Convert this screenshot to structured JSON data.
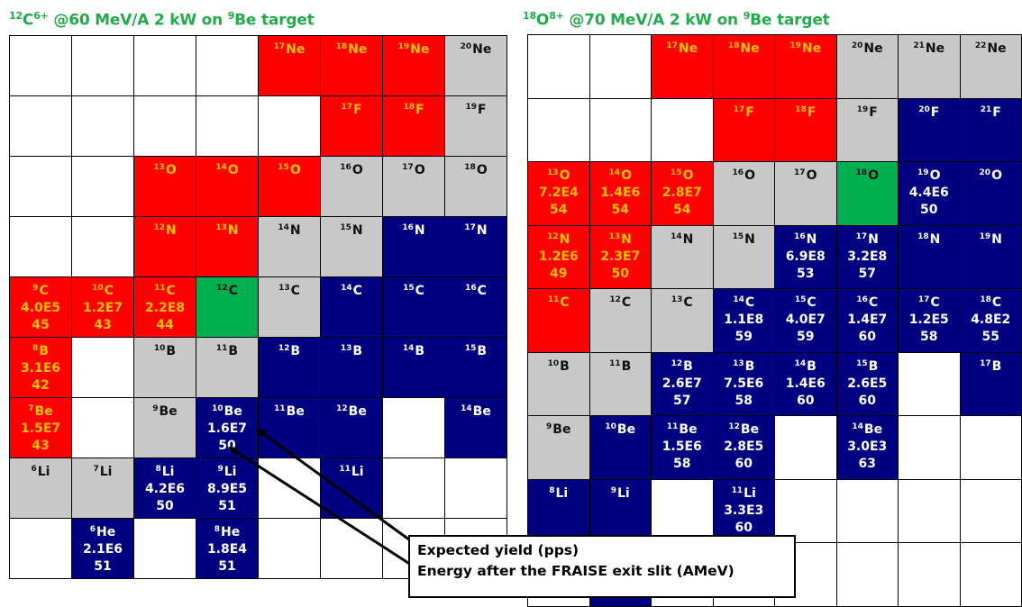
{
  "left": {
    "title": {
      "pre": "12",
      "ion": "C",
      "charge": "6+",
      "mid": " @60 MeV/A 2 kW on ",
      "tpre": "9",
      "target": "Be",
      "post": " target"
    },
    "rows": [
      [
        {
          "c": "w"
        },
        {
          "c": "w"
        },
        {
          "c": "w"
        },
        {
          "c": "w"
        },
        {
          "c": "r",
          "a": "17",
          "e": "Ne"
        },
        {
          "c": "r",
          "a": "18",
          "e": "Ne"
        },
        {
          "c": "r",
          "a": "19",
          "e": "Ne"
        },
        {
          "c": "g",
          "a": "20",
          "e": "Ne"
        }
      ],
      [
        {
          "c": "w"
        },
        {
          "c": "w"
        },
        {
          "c": "w"
        },
        {
          "c": "w"
        },
        {
          "c": "w"
        },
        {
          "c": "r",
          "a": "17",
          "e": "F"
        },
        {
          "c": "r",
          "a": "18",
          "e": "F"
        },
        {
          "c": "g",
          "a": "19",
          "e": "F"
        }
      ],
      [
        {
          "c": "w"
        },
        {
          "c": "w"
        },
        {
          "c": "r",
          "a": "13",
          "e": "O"
        },
        {
          "c": "r",
          "a": "14",
          "e": "O"
        },
        {
          "c": "r",
          "a": "15",
          "e": "O"
        },
        {
          "c": "g",
          "a": "16",
          "e": "O"
        },
        {
          "c": "g",
          "a": "17",
          "e": "O"
        },
        {
          "c": "g",
          "a": "18",
          "e": "O"
        }
      ],
      [
        {
          "c": "w"
        },
        {
          "c": "w"
        },
        {
          "c": "r",
          "a": "12",
          "e": "N"
        },
        {
          "c": "r",
          "a": "13",
          "e": "N"
        },
        {
          "c": "g",
          "a": "14",
          "e": "N"
        },
        {
          "c": "g",
          "a": "15",
          "e": "N"
        },
        {
          "c": "b",
          "a": "16",
          "e": "N"
        },
        {
          "c": "b",
          "a": "17",
          "e": "N"
        }
      ],
      [
        {
          "c": "r",
          "a": "9",
          "e": "C",
          "y": "4.0E5",
          "en": "45"
        },
        {
          "c": "r",
          "a": "10",
          "e": "C",
          "y": "1.2E7",
          "en": "43"
        },
        {
          "c": "r",
          "a": "11",
          "e": "C",
          "y": "2.2E8",
          "en": "44"
        },
        {
          "c": "gr",
          "a": "12",
          "e": "C"
        },
        {
          "c": "g",
          "a": "13",
          "e": "C"
        },
        {
          "c": "b",
          "a": "14",
          "e": "C"
        },
        {
          "c": "b",
          "a": "15",
          "e": "C"
        },
        {
          "c": "b",
          "a": "16",
          "e": "C"
        }
      ],
      [
        {
          "c": "r",
          "a": "8",
          "e": "B",
          "y": "3.1E6",
          "en": "42"
        },
        {
          "c": "w"
        },
        {
          "c": "g",
          "a": "10",
          "e": "B"
        },
        {
          "c": "g",
          "a": "11",
          "e": "B"
        },
        {
          "c": "b",
          "a": "12",
          "e": "B"
        },
        {
          "c": "b",
          "a": "13",
          "e": "B"
        },
        {
          "c": "b",
          "a": "14",
          "e": "B"
        },
        {
          "c": "b",
          "a": "15",
          "e": "B"
        }
      ],
      [
        {
          "c": "r",
          "a": "7",
          "e": "Be",
          "y": "1.5E7",
          "en": "43"
        },
        {
          "c": "w"
        },
        {
          "c": "g",
          "a": "9",
          "e": "Be"
        },
        {
          "c": "b",
          "a": "10",
          "e": "Be",
          "y": "1.6E7",
          "en": "50"
        },
        {
          "c": "b",
          "a": "11",
          "e": "Be"
        },
        {
          "c": "b",
          "a": "12",
          "e": "Be"
        },
        {
          "c": "w"
        },
        {
          "c": "b",
          "a": "14",
          "e": "Be"
        }
      ],
      [
        {
          "c": "g",
          "a": "6",
          "e": "Li"
        },
        {
          "c": "g",
          "a": "7",
          "e": "Li"
        },
        {
          "c": "b",
          "a": "8",
          "e": "Li",
          "y": "4.2E6",
          "en": "50"
        },
        {
          "c": "b",
          "a": "9",
          "e": "Li",
          "y": "8.9E5",
          "en": "51"
        },
        {
          "c": "w"
        },
        {
          "c": "b",
          "a": "11",
          "e": "Li"
        },
        {
          "c": "w"
        },
        {
          "c": "w"
        }
      ],
      [
        {
          "c": "w"
        },
        {
          "c": "b",
          "a": "6",
          "e": "He",
          "y": "2.1E6",
          "en": "51"
        },
        {
          "c": "w"
        },
        {
          "c": "b",
          "a": "8",
          "e": "He",
          "y": "1.8E4",
          "en": "51"
        },
        {
          "c": "w"
        },
        {
          "c": "w"
        },
        {
          "c": "w"
        },
        {
          "c": "w"
        }
      ]
    ]
  },
  "right": {
    "title": {
      "pre": "18",
      "ion": "O",
      "charge": "8+",
      "mid": " @70 MeV/A 2 kW on ",
      "tpre": "9",
      "target": "Be",
      "post": " target"
    },
    "rows": [
      [
        {
          "c": "w"
        },
        {
          "c": "w"
        },
        {
          "c": "r",
          "a": "17",
          "e": "Ne"
        },
        {
          "c": "r",
          "a": "18",
          "e": "Ne"
        },
        {
          "c": "r",
          "a": "19",
          "e": "Ne"
        },
        {
          "c": "g",
          "a": "20",
          "e": "Ne"
        },
        {
          "c": "g",
          "a": "21",
          "e": "Ne"
        },
        {
          "c": "g",
          "a": "22",
          "e": "Ne"
        }
      ],
      [
        {
          "c": "w"
        },
        {
          "c": "w"
        },
        {
          "c": "w"
        },
        {
          "c": "r",
          "a": "17",
          "e": "F"
        },
        {
          "c": "r",
          "a": "18",
          "e": "F"
        },
        {
          "c": "g",
          "a": "19",
          "e": "F"
        },
        {
          "c": "b",
          "a": "20",
          "e": "F"
        },
        {
          "c": "b",
          "a": "21",
          "e": "F"
        }
      ],
      [
        {
          "c": "r",
          "a": "13",
          "e": "O",
          "y": "7.2E4",
          "en": "54"
        },
        {
          "c": "r",
          "a": "14",
          "e": "O",
          "y": "1.4E6",
          "en": "54"
        },
        {
          "c": "r",
          "a": "15",
          "e": "O",
          "y": "2.8E7",
          "en": "54"
        },
        {
          "c": "g",
          "a": "16",
          "e": "O"
        },
        {
          "c": "g",
          "a": "17",
          "e": "O"
        },
        {
          "c": "gr",
          "a": "18",
          "e": "O"
        },
        {
          "c": "b",
          "a": "19",
          "e": "O",
          "y": "4.4E6",
          "en": "50"
        },
        {
          "c": "b",
          "a": "20",
          "e": "O"
        }
      ],
      [
        {
          "c": "r",
          "a": "12",
          "e": "N",
          "y": "1.2E6",
          "en": "49"
        },
        {
          "c": "r",
          "a": "13",
          "e": "N",
          "y": "2.3E7",
          "en": "50"
        },
        {
          "c": "g",
          "a": "14",
          "e": "N"
        },
        {
          "c": "g",
          "a": "15",
          "e": "N"
        },
        {
          "c": "b",
          "a": "16",
          "e": "N",
          "y": "6.9E8",
          "en": "53"
        },
        {
          "c": "b",
          "a": "17",
          "e": "N",
          "y": "3.2E8",
          "en": "57"
        },
        {
          "c": "b",
          "a": "18",
          "e": "N"
        },
        {
          "c": "b",
          "a": "19",
          "e": "N"
        }
      ],
      [
        {
          "c": "r",
          "a": "11",
          "e": "C"
        },
        {
          "c": "g",
          "a": "12",
          "e": "C"
        },
        {
          "c": "g",
          "a": "13",
          "e": "C"
        },
        {
          "c": "b",
          "a": "14",
          "e": "C",
          "y": "1.1E8",
          "en": "59"
        },
        {
          "c": "b",
          "a": "15",
          "e": "C",
          "y": "4.0E7",
          "en": "59"
        },
        {
          "c": "b",
          "a": "16",
          "e": "C",
          "y": "1.4E7",
          "en": "60"
        },
        {
          "c": "b",
          "a": "17",
          "e": "C",
          "y": "1.2E5",
          "en": "58"
        },
        {
          "c": "b",
          "a": "18",
          "e": "C",
          "y": "4.8E2",
          "en": "55"
        }
      ],
      [
        {
          "c": "g",
          "a": "10",
          "e": "B"
        },
        {
          "c": "g",
          "a": "11",
          "e": "B"
        },
        {
          "c": "b",
          "a": "12",
          "e": "B",
          "y": "2.6E7",
          "en": "57"
        },
        {
          "c": "b",
          "a": "13",
          "e": "B",
          "y": "7.5E6",
          "en": "58"
        },
        {
          "c": "b",
          "a": "14",
          "e": "B",
          "y": "1.4E6",
          "en": "60"
        },
        {
          "c": "b",
          "a": "15",
          "e": "B",
          "y": "2.6E5",
          "en": "60"
        },
        {
          "c": "w"
        },
        {
          "c": "b",
          "a": "17",
          "e": "B"
        }
      ],
      [
        {
          "c": "g",
          "a": "9",
          "e": "Be"
        },
        {
          "c": "b",
          "a": "10",
          "e": "Be"
        },
        {
          "c": "b",
          "a": "11",
          "e": "Be",
          "y": "1.5E6",
          "en": "58"
        },
        {
          "c": "b",
          "a": "12",
          "e": "Be",
          "y": "2.8E5",
          "en": "60"
        },
        {
          "c": "w"
        },
        {
          "c": "b",
          "a": "14",
          "e": "Be",
          "y": "3.0E3",
          "en": "63"
        },
        {
          "c": "w"
        },
        {
          "c": "w"
        }
      ],
      [
        {
          "c": "b",
          "a": "8",
          "e": "Li"
        },
        {
          "c": "b",
          "a": "9",
          "e": "Li"
        },
        {
          "c": "w"
        },
        {
          "c": "b",
          "a": "11",
          "e": "Li",
          "y": "3.3E3",
          "en": "60"
        },
        {
          "c": "w"
        },
        {
          "c": "w"
        },
        {
          "c": "w"
        },
        {
          "c": "w"
        }
      ],
      [
        {
          "c": "w"
        },
        {
          "c": "b"
        },
        {
          "c": "w"
        },
        {
          "c": "w"
        },
        {
          "c": "w"
        },
        {
          "c": "w"
        },
        {
          "c": "w"
        },
        {
          "c": "w"
        }
      ]
    ]
  },
  "legend": {
    "line1": "Expected yield (pps)",
    "line2": "Energy after the FRAISE exit slit (AMeV)"
  },
  "colors": {
    "red_cell": "#ff0000",
    "red_text": "#ffc000",
    "blue_cell": "#000080",
    "grey_cell": "#c8c8c8",
    "green_cell": "#00b050",
    "title_green": "#22aa4b"
  }
}
